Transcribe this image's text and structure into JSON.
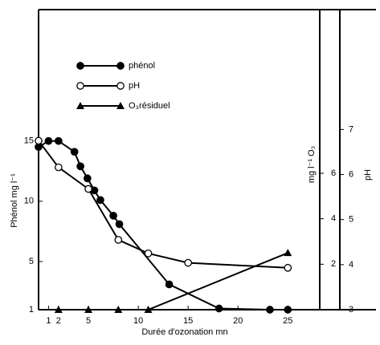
{
  "chart_data": {
    "type": "line",
    "x_label": "Durée d'ozonation   mn",
    "y_label": "Phénol mg l⁻¹",
    "y2_label": "mg l⁻¹ O₃",
    "y3_label": "pH",
    "xlim": [
      0,
      28.2
    ],
    "xticks": [
      1,
      2,
      5,
      10,
      15,
      20,
      25
    ],
    "ylim": [
      1,
      25.9
    ],
    "yticks": [
      1,
      5,
      10,
      15
    ],
    "y2lim": [
      0,
      13.2
    ],
    "y2ticks": [
      2,
      4,
      6
    ],
    "y3lim": [
      3,
      9.66
    ],
    "y3ticks": [
      3,
      4,
      5,
      6,
      7
    ],
    "series": [
      {
        "name": "phénol",
        "color": "#000",
        "marker": "filled-circle",
        "axis": "y",
        "x": [
          0,
          1,
          2,
          3.6,
          4.2,
          4.9,
          5.6,
          6.2,
          7.5,
          8.1,
          13.1,
          18.1,
          23.2,
          25
        ],
        "values": [
          14.5,
          15,
          15,
          14.1,
          12.9,
          11.9,
          10.9,
          10.1,
          8.8,
          8.1,
          3.1,
          1.1,
          1,
          1
        ]
      },
      {
        "name": "pH",
        "color": "#000",
        "marker": "open-circle",
        "axis": "y3",
        "x": [
          0,
          2,
          5,
          8,
          11,
          15,
          25
        ],
        "values": [
          6.75,
          6.16,
          5.68,
          4.55,
          4.25,
          4.04,
          3.93
        ]
      },
      {
        "name": "O₃résiduel",
        "color": "#000",
        "marker": "triangle",
        "axis": "y2",
        "x": [
          2,
          5,
          8,
          11,
          25
        ],
        "values": [
          0,
          0,
          0,
          0,
          2.5
        ]
      }
    ]
  }
}
